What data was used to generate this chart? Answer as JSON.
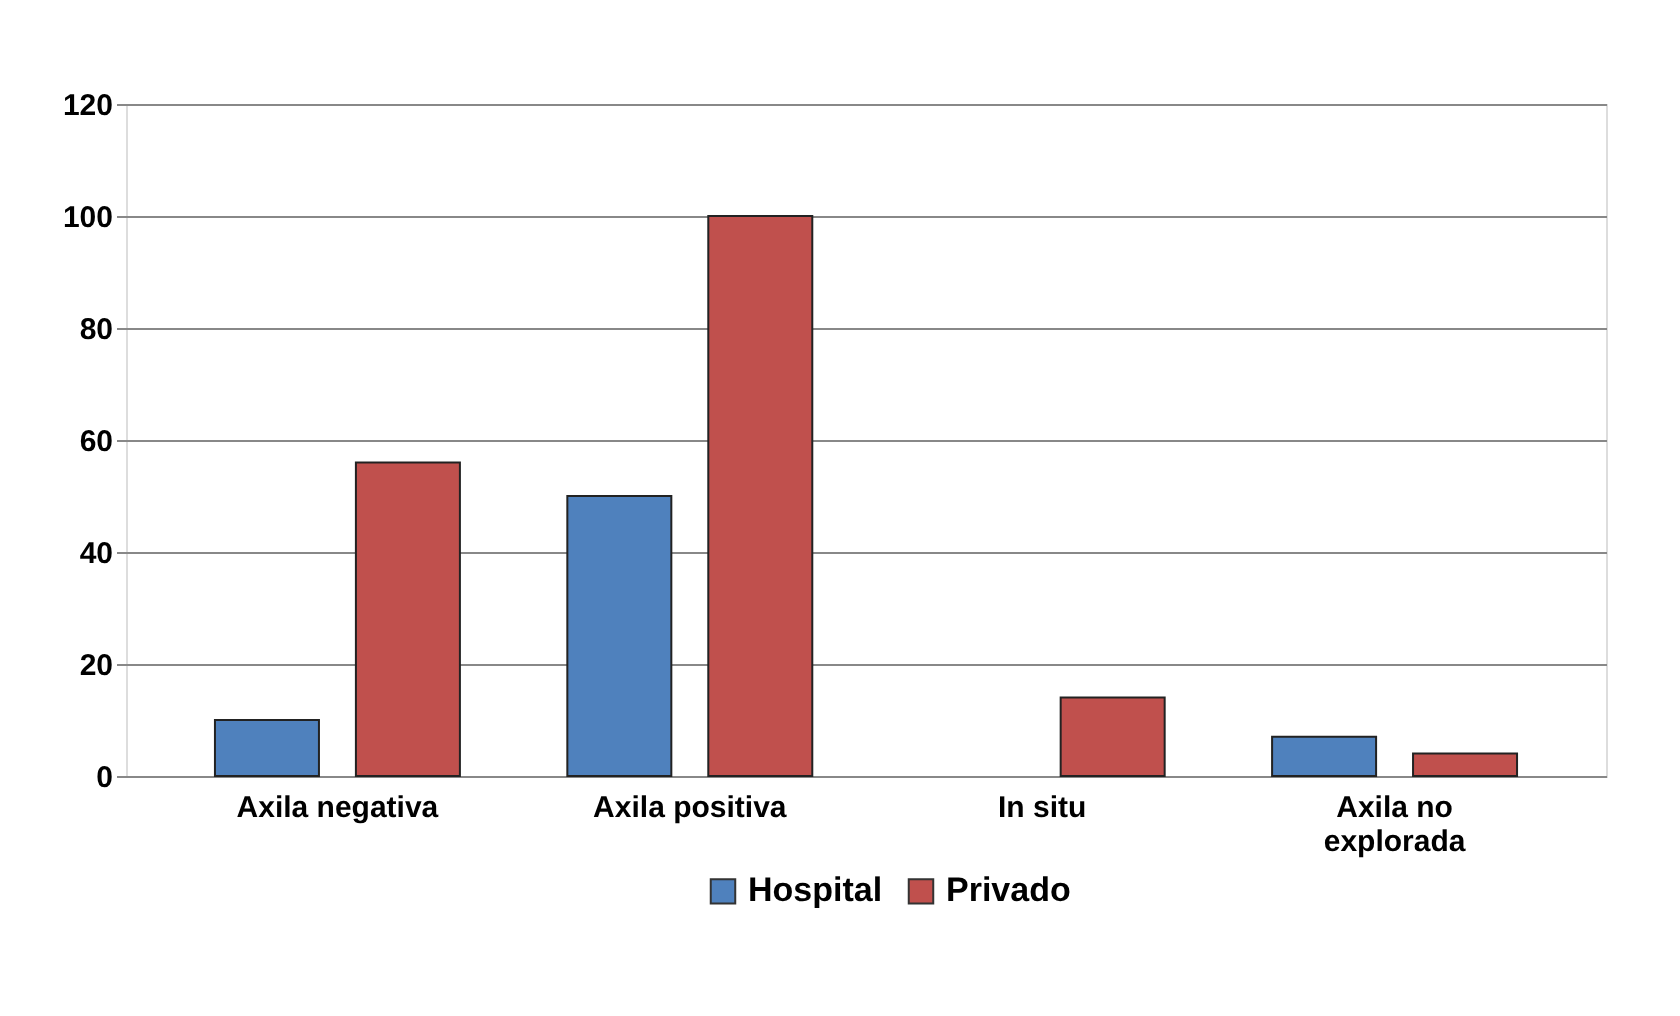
{
  "chart_data": {
    "type": "bar",
    "categories": [
      "Axila negativa",
      "Axila positiva",
      "In situ",
      "Axila no explorada"
    ],
    "series": [
      {
        "name": "Hospital",
        "color": "#4f81bd",
        "values": [
          10,
          50,
          null,
          7
        ]
      },
      {
        "name": "Privado",
        "color": "#c0504d",
        "values": [
          56,
          100,
          14,
          4
        ]
      }
    ],
    "ylim": [
      0,
      120
    ],
    "yticks": [
      0,
      20,
      40,
      60,
      80,
      100,
      120
    ],
    "grid": "y",
    "legend": "bottom"
  }
}
